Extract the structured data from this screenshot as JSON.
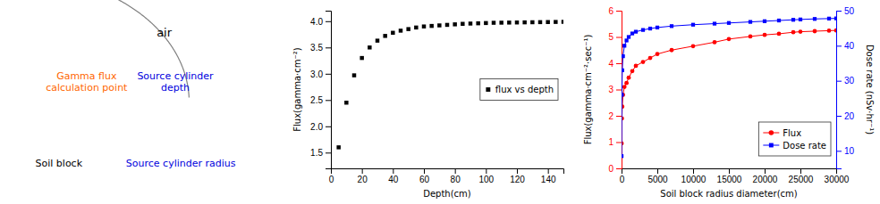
{
  "chart_data": [
    {
      "type": "diagram",
      "annotations": [
        {
          "text": "air",
          "color": "black"
        },
        {
          "text": "Gamma flux\ncalculation point",
          "color": "#FF6600"
        },
        {
          "text": "Source cylinder\ndepth",
          "color": "#0000DD"
        },
        {
          "text": "Soil block",
          "color": "black"
        },
        {
          "text": "Source cylinder radius",
          "color": "#0000DD"
        }
      ]
    },
    {
      "type": "scatter",
      "xlabel": "Depth(cm)",
      "ylabel": "Flux(gamma·cm⁻²)",
      "x": [
        5,
        10,
        15,
        20,
        25,
        30,
        35,
        40,
        45,
        50,
        55,
        60,
        65,
        70,
        75,
        80,
        85,
        90,
        95,
        100,
        105,
        110,
        115,
        120,
        125,
        130,
        135,
        140,
        145,
        150
      ],
      "series": [
        {
          "name": "flux vs depth",
          "color": "black",
          "marker": "square",
          "values": [
            1.6,
            2.45,
            2.97,
            3.3,
            3.5,
            3.63,
            3.72,
            3.78,
            3.82,
            3.85,
            3.88,
            3.9,
            3.91,
            3.92,
            3.93,
            3.94,
            3.95,
            3.955,
            3.96,
            3.965,
            3.97,
            3.972,
            3.974,
            3.976,
            3.978,
            3.98,
            3.982,
            3.984,
            3.986,
            3.988
          ]
        }
      ],
      "xlim": [
        0,
        150
      ],
      "ylim": [
        1.2,
        4.2
      ],
      "xticks": [
        0,
        20,
        40,
        60,
        80,
        100,
        120,
        140
      ],
      "yticks": [
        1.5,
        {
          "value": 2,
          "label": "2.0"
        },
        2.5,
        {
          "value": 3,
          "label": "3.0"
        },
        3.5,
        {
          "value": 4,
          "label": "4.0"
        }
      ],
      "grid": false,
      "legend": "right"
    },
    {
      "type": "line",
      "xlabel": "Soil block radius diameter(cm)",
      "ylabel": "Flux(gamma·cm⁻²·sec⁻¹)",
      "y2label": "Dose rate (nSv·hr⁻¹)",
      "x": [
        10,
        50,
        100,
        200,
        400,
        700,
        1000,
        1500,
        2000,
        3000,
        4000,
        5000,
        7000,
        10000,
        13000,
        15000,
        18000,
        20000,
        22000,
        24000,
        25000,
        27000,
        29000,
        30000
      ],
      "series": [
        {
          "name": "Flux",
          "color": "#FF0000",
          "marker": "circle",
          "line_style": "solid",
          "values": [
            0.95,
            1.9,
            2.35,
            2.8,
            3.1,
            3.25,
            3.45,
            3.7,
            3.9,
            4.05,
            4.2,
            4.35,
            4.5,
            4.65,
            4.8,
            4.92,
            5.02,
            5.08,
            5.12,
            5.18,
            5.2,
            5.22,
            5.24,
            5.25
          ]
        },
        {
          "name": "Dose rate",
          "color": "#0000FF",
          "marker": "square",
          "line_style": "solid",
          "axis": "y2",
          "values": [
            8.5,
            26,
            33,
            37,
            40,
            41.5,
            42.5,
            43.5,
            44.0,
            44.5,
            44.9,
            45.2,
            45.6,
            46.0,
            46.3,
            46.5,
            46.8,
            47.0,
            47.2,
            47.4,
            47.5,
            47.65,
            47.75,
            47.8
          ]
        }
      ],
      "xlim": [
        0,
        30000
      ],
      "ylim": [
        0,
        6
      ],
      "y2lim": [
        5,
        50
      ],
      "xticks": [
        0,
        5000,
        10000,
        15000,
        20000,
        25000,
        30000
      ],
      "yticks": [
        0,
        1,
        2,
        3,
        4,
        5,
        6
      ],
      "y2ticks": [
        10,
        20,
        30,
        40,
        50
      ],
      "grid": false,
      "legend": "lower right"
    }
  ]
}
